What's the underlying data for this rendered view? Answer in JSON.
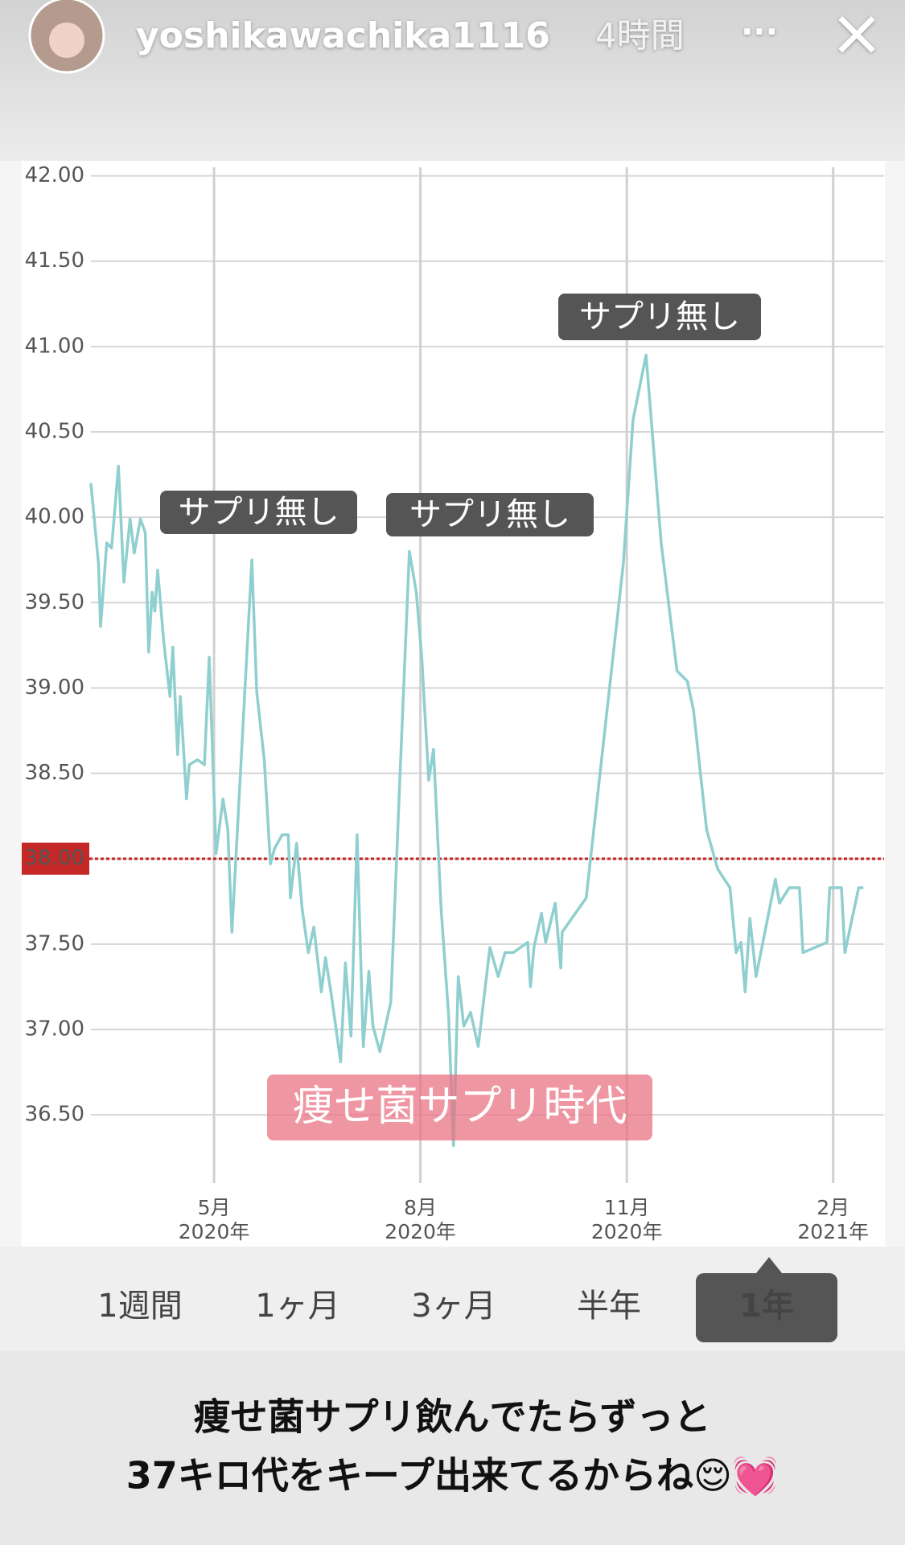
{
  "header": {
    "username": "yoshikawachika1116",
    "time": "4時間",
    "more": "···",
    "close": "×"
  },
  "chart_data": {
    "type": "line",
    "color": "#8fcfcf",
    "xlim": [
      3.21,
      14.74
    ],
    "ylim": [
      36.1,
      42.05
    ],
    "xticks": [
      {
        "value": 5,
        "label": [
          "5月",
          "2020年"
        ]
      },
      {
        "value": 8,
        "label": [
          "8月",
          "2020年"
        ]
      },
      {
        "value": 11,
        "label": [
          "11月",
          "2020年"
        ]
      },
      {
        "value": 14,
        "label": [
          "2月",
          "2021年"
        ]
      }
    ],
    "yticks": [
      {
        "value": 42,
        "label": "42.00"
      },
      {
        "value": 41.5,
        "label": "41.50"
      },
      {
        "value": 41,
        "label": "41.00"
      },
      {
        "value": 40.5,
        "label": "40.50"
      },
      {
        "value": 40,
        "label": "40.00"
      },
      {
        "value": 39.5,
        "label": "39.50"
      },
      {
        "value": 39,
        "label": "39.00"
      },
      {
        "value": 38.5,
        "label": "38.50"
      },
      {
        "value": 38,
        "label": "38.00"
      },
      {
        "value": 37.5,
        "label": "37.50"
      },
      {
        "value": 37,
        "label": "37.00"
      },
      {
        "value": 36.5,
        "label": "36.50"
      }
    ],
    "grid": true,
    "reference_line": {
      "value": 38,
      "color": "#c62828"
    },
    "x": [
      3.21,
      3.32,
      3.35,
      3.44,
      3.51,
      3.61,
      3.69,
      3.78,
      3.84,
      3.93,
      4.0,
      4.05,
      4.1,
      4.14,
      4.18,
      4.27,
      4.36,
      4.4,
      4.47,
      4.51,
      4.6,
      4.64,
      4.76,
      4.86,
      4.93,
      5.03,
      5.13,
      5.2,
      5.26,
      5.55,
      5.62,
      5.73,
      5.82,
      5.88,
      5.99,
      6.08,
      6.11,
      6.2,
      6.28,
      6.37,
      6.45,
      6.56,
      6.62,
      6.71,
      6.84,
      6.91,
      6.99,
      7.08,
      7.17,
      7.25,
      7.31,
      7.41,
      7.57,
      7.7,
      7.84,
      7.94,
      8.02,
      8.12,
      8.19,
      8.3,
      8.41,
      8.48,
      8.55,
      8.63,
      8.73,
      8.84,
      9.01,
      9.13,
      9.23,
      9.35,
      9.56,
      9.6,
      9.65,
      9.76,
      9.82,
      9.96,
      10.04,
      10.06,
      10.41,
      10.95,
      11.09,
      11.28,
      11.5,
      11.64,
      11.73,
      11.88,
      11.97,
      12.16,
      12.32,
      12.5,
      12.59,
      12.66,
      12.72,
      12.79,
      12.88,
      13.16,
      13.22,
      13.36,
      13.51,
      13.56,
      13.91,
      13.95,
      14.12,
      14.17,
      14.37,
      14.44
    ],
    "values": [
      40.2,
      39.73,
      39.36,
      39.85,
      39.82,
      40.3,
      39.62,
      39.99,
      39.79,
      39.99,
      39.91,
      39.21,
      39.56,
      39.45,
      39.69,
      39.27,
      38.95,
      39.24,
      38.61,
      38.95,
      38.35,
      38.55,
      38.58,
      38.55,
      39.18,
      38.03,
      38.35,
      38.17,
      37.57,
      39.75,
      38.98,
      38.58,
      37.97,
      38.06,
      38.14,
      38.14,
      37.77,
      38.09,
      37.71,
      37.45,
      37.6,
      37.22,
      37.42,
      37.19,
      36.81,
      37.39,
      36.96,
      38.14,
      36.9,
      37.34,
      37.02,
      36.87,
      37.16,
      38.46,
      39.8,
      39.56,
      39.18,
      38.46,
      38.64,
      37.71,
      37.08,
      36.32,
      37.31,
      37.02,
      37.1,
      36.9,
      37.48,
      37.31,
      37.45,
      37.45,
      37.51,
      37.25,
      37.48,
      37.68,
      37.51,
      37.74,
      37.36,
      37.57,
      37.77,
      39.73,
      40.57,
      40.95,
      39.85,
      39.39,
      39.1,
      39.04,
      38.87,
      38.17,
      37.94,
      37.83,
      37.45,
      37.51,
      37.22,
      37.65,
      37.31,
      37.88,
      37.74,
      37.83,
      37.83,
      37.45,
      37.51,
      37.83,
      37.83,
      37.45,
      37.83,
      37.83
    ],
    "annotations": [
      "サプリ無し",
      "サプリ無し",
      "サプリ無し",
      "痩せ菌サプリ時代"
    ]
  },
  "tabs": {
    "items": [
      "1週間",
      "1ヶ月",
      "3ヶ月",
      "半年",
      "1年"
    ],
    "selected": 4
  },
  "caption": [
    "痩せ菌サプリ飲んでたらずっと",
    "37キロ代をキープ出来てるからね😌💓"
  ]
}
